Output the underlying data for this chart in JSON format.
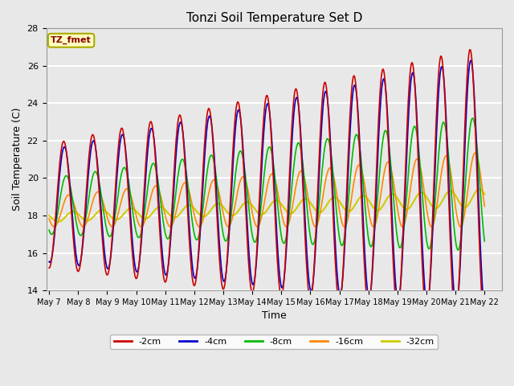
{
  "title": "Tonzi Soil Temperature Set D",
  "xlabel": "Time",
  "ylabel": "Soil Temperature (C)",
  "ylim": [
    14,
    28
  ],
  "xlim_days": [
    -0.1,
    15.6
  ],
  "tick_labels": [
    "May 7",
    "May 8",
    "May 9",
    "May 10",
    "May 11",
    "May 12",
    "May 13",
    "May 14",
    "May 15",
    "May 16",
    "May 17",
    "May 18",
    "May 19",
    "May 20",
    "May 21",
    "May 22"
  ],
  "annotation_text": "TZ_fmet",
  "annotation_color": "#8B0000",
  "annotation_bg": "#FFFFC0",
  "annotation_border": "#AAAA00",
  "series": {
    "-2cm": {
      "color": "#CC0000",
      "linewidth": 1.2
    },
    "-4cm": {
      "color": "#0000CC",
      "linewidth": 1.2
    },
    "-8cm": {
      "color": "#00BB00",
      "linewidth": 1.2
    },
    "-16cm": {
      "color": "#FF8800",
      "linewidth": 1.2
    },
    "-32cm": {
      "color": "#CCCC00",
      "linewidth": 1.5
    }
  },
  "legend_colors": {
    "-2cm": "#CC0000",
    "-4cm": "#0000CC",
    "-8cm": "#00BB00",
    "-16cm": "#FF8800",
    "-32cm": "#CCCC00"
  },
  "plot_bg": "#E8E8E8",
  "fig_bg": "#E8E8E8",
  "grid_color": "#FFFFFF",
  "num_points": 800
}
